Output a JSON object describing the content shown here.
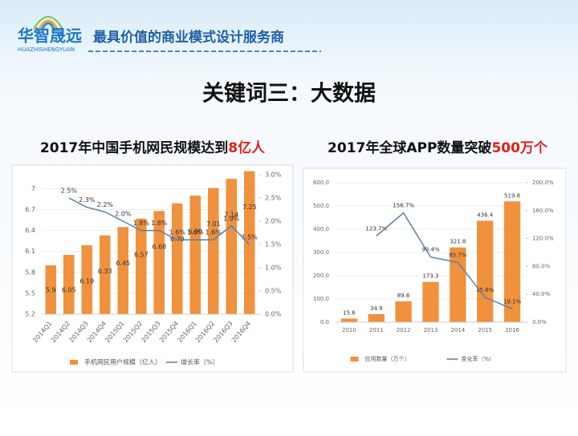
{
  "header": {
    "logo": "华智晟远",
    "logo_sub": "HUAZHISHENGYUAN",
    "slogan": "最具价值的商业模式设计服务商"
  },
  "title": "关键词三：大数据",
  "chart_data": [
    {
      "type": "bar_line",
      "title_parts": [
        "2017年中国手机网民规模达到",
        "8亿人"
      ],
      "categories": [
        "2014Q1",
        "2014Q2",
        "2014Q3",
        "2014Q4",
        "2015Q1",
        "2015Q2",
        "2015Q3",
        "2015Q4",
        "2016Q1",
        "2016Q2",
        "2016Q3",
        "2016Q4"
      ],
      "series": [
        {
          "name": "手机网民用户规模（亿人）",
          "color": "#f0913d",
          "values": [
            5.9,
            6.05,
            6.19,
            6.33,
            6.45,
            6.57,
            6.68,
            6.79,
            6.9,
            7.01,
            7.14,
            7.25
          ],
          "value_labels": [
            "5.9",
            "6.05",
            "6.19",
            "6.33",
            "6.45",
            "6.57",
            "6.68",
            "6.79",
            "6.90",
            "7.01",
            "7.14",
            "7.25"
          ]
        },
        {
          "name": "增长率（%）",
          "color": "#5b7fa8",
          "axis": "y2",
          "values": [
            null,
            2.5,
            2.3,
            2.2,
            2.0,
            1.8,
            1.8,
            1.6,
            1.6,
            1.6,
            1.9,
            1.5
          ],
          "value_labels": [
            null,
            "2.5%",
            "2.3%",
            "2.2%",
            "2.0%",
            "1.8%",
            "1.8%",
            "1.6%",
            "1.6%",
            "1.6%",
            "1.9%",
            "1.5%"
          ]
        }
      ],
      "ylim": [
        5.2,
        7.2
      ],
      "yticks": [
        5.2,
        5.5,
        5.8,
        6.1,
        6.4,
        6.7,
        7
      ],
      "y2lim": [
        0,
        3.0
      ],
      "y2ticks": [
        {
          "value": 0,
          "label": "0.0%"
        },
        {
          "value": 0.5,
          "label": "0.5%"
        },
        {
          "value": 1,
          "label": "1.0%"
        },
        {
          "value": 1.5,
          "label": "1.5%"
        },
        {
          "value": 2,
          "label": "2.0%"
        },
        {
          "value": 2.5,
          "label": "2.5%"
        },
        {
          "value": 3,
          "label": "3.0%"
        }
      ],
      "grid": true
    },
    {
      "type": "bar_line",
      "title_parts": [
        "2017年全球APP数量突破",
        "500万个"
      ],
      "categories": [
        "2010",
        "2011",
        "2012",
        "2013",
        "2014",
        "2015",
        "2016"
      ],
      "series": [
        {
          "name": "应用数量（万个）",
          "color": "#f0913d",
          "values": [
            15.6,
            34.9,
            89.6,
            173.3,
            321.8,
            436.4,
            519.8
          ]
        },
        {
          "name": "变化率（%）",
          "color": "#5b7fa8",
          "axis": "y2",
          "values": [
            null,
            123.7,
            156.7,
            93.4,
            85.7,
            35.6,
            19.1
          ],
          "value_labels": [
            null,
            "123.7%",
            "156.7%",
            "93.4%",
            "85.7%",
            "35.6%",
            "19.1%"
          ]
        }
      ],
      "ylim": [
        0,
        600
      ],
      "yticks": [
        {
          "value": 0,
          "label": "0.0"
        },
        {
          "value": 100,
          "label": "100.0"
        },
        {
          "value": 200,
          "label": "200.0"
        },
        {
          "value": 300,
          "label": "300.0"
        },
        {
          "value": 400,
          "label": "400.0"
        },
        {
          "value": 500,
          "label": "500.0"
        },
        {
          "value": 600,
          "label": "600.0"
        }
      ],
      "y2lim": [
        0,
        200
      ],
      "y2ticks": [
        {
          "value": 0,
          "label": "0.0%"
        },
        {
          "value": 40,
          "label": "40.0%"
        },
        {
          "value": 80,
          "label": "80.0%"
        },
        {
          "value": 120,
          "label": "120.0%"
        },
        {
          "value": 160,
          "label": "160.0%"
        },
        {
          "value": 200,
          "label": "200.0%"
        }
      ],
      "grid": true
    }
  ]
}
